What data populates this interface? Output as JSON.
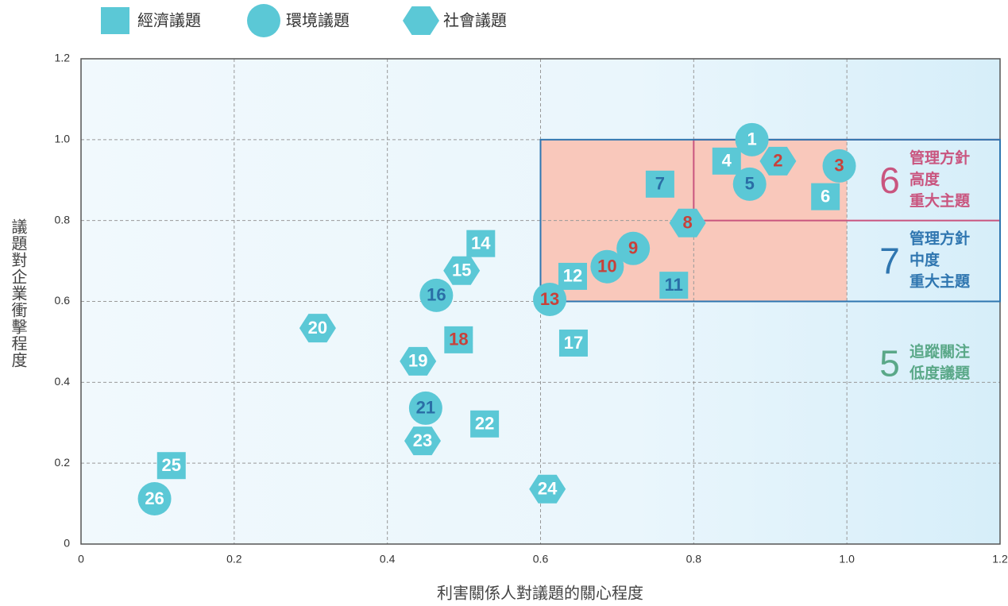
{
  "chart_data": {
    "type": "scatter",
    "xlabel": "利害關係人對議題的關心程度",
    "ylabel": "議題對企業衝擊程度",
    "xlim": [
      0,
      1.2
    ],
    "ylim": [
      0,
      1.2
    ],
    "xticks": [
      0,
      0.2,
      0.4,
      0.6,
      0.8,
      {
        "value": 1,
        "label": "1.0"
      },
      1.2
    ],
    "yticks": [
      0,
      0.2,
      0.4,
      0.6,
      0.8,
      {
        "value": 1,
        "label": "1.0"
      },
      1.2
    ],
    "grid": true,
    "legend": "top-left",
    "highlight": {
      "xlim": [
        0.6,
        1.0
      ],
      "ylim": [
        0.6,
        1.0
      ],
      "color": "#f9c8bb"
    },
    "regions": [
      {
        "number": "6",
        "lines": [
          "管理方針",
          "高度",
          "重大主題"
        ],
        "color": "#c9557f",
        "xlim": [
          0.8,
          1.2
        ],
        "ylim": [
          0.8,
          1.0
        ]
      },
      {
        "number": "7",
        "lines": [
          "管理方針",
          "中度",
          "重大主題"
        ],
        "color": "#2f76b0",
        "xlim": [
          0.6,
          1.2
        ],
        "ylim": [
          0.6,
          1.0
        ]
      },
      {
        "number": "5",
        "lines": [
          "追蹤關注",
          "低度議題"
        ],
        "color": "#5aa888"
      }
    ],
    "series": [
      {
        "name": "經濟議題",
        "shape": "square",
        "color": "#5bc8d6",
        "labels": [
          "4",
          "6",
          "7",
          "11",
          "12",
          "14",
          "17",
          "18",
          "22",
          "25"
        ],
        "label_colors": [
          "#ffffff",
          "#ffffff",
          "#2a6ea6",
          "#2a6ea6",
          "#ffffff",
          "#ffffff",
          "#ffffff",
          "#c8413a",
          "#ffffff",
          "#ffffff"
        ],
        "x": [
          0.843,
          0.972,
          0.756,
          0.774,
          0.642,
          0.522,
          0.643,
          0.493,
          0.527,
          0.118
        ],
        "values": [
          0.947,
          0.859,
          0.89,
          0.64,
          0.662,
          0.743,
          0.497,
          0.505,
          0.297,
          0.194
        ]
      },
      {
        "name": "環境議題",
        "shape": "circle",
        "color": "#5bc8d6",
        "labels": [
          "1",
          "3",
          "5",
          "9",
          "10",
          "13",
          "16",
          "21",
          "26"
        ],
        "label_colors": [
          "#ffffff",
          "#c8413a",
          "#2a6ea6",
          "#c8413a",
          "#c8413a",
          "#c8413a",
          "#2a6ea6",
          "#2a6ea6",
          "#ffffff"
        ],
        "x": [
          0.876,
          0.99,
          0.873,
          0.721,
          0.687,
          0.612,
          0.464,
          0.45,
          0.096
        ],
        "values": [
          1.0,
          0.935,
          0.89,
          0.731,
          0.686,
          0.605,
          0.615,
          0.336,
          0.112
        ]
      },
      {
        "name": "社會議題",
        "shape": "hexagon",
        "color": "#5bc8d6",
        "labels": [
          "2",
          "8",
          "15",
          "19",
          "20",
          "23",
          "24"
        ],
        "label_colors": [
          "#c8413a",
          "#c8413a",
          "#ffffff",
          "#ffffff",
          "#ffffff",
          "#ffffff",
          "#ffffff"
        ],
        "x": [
          0.91,
          0.792,
          0.497,
          0.44,
          0.309,
          0.446,
          0.609
        ],
        "values": [
          0.947,
          0.794,
          0.676,
          0.452,
          0.534,
          0.255,
          0.136
        ]
      }
    ]
  }
}
